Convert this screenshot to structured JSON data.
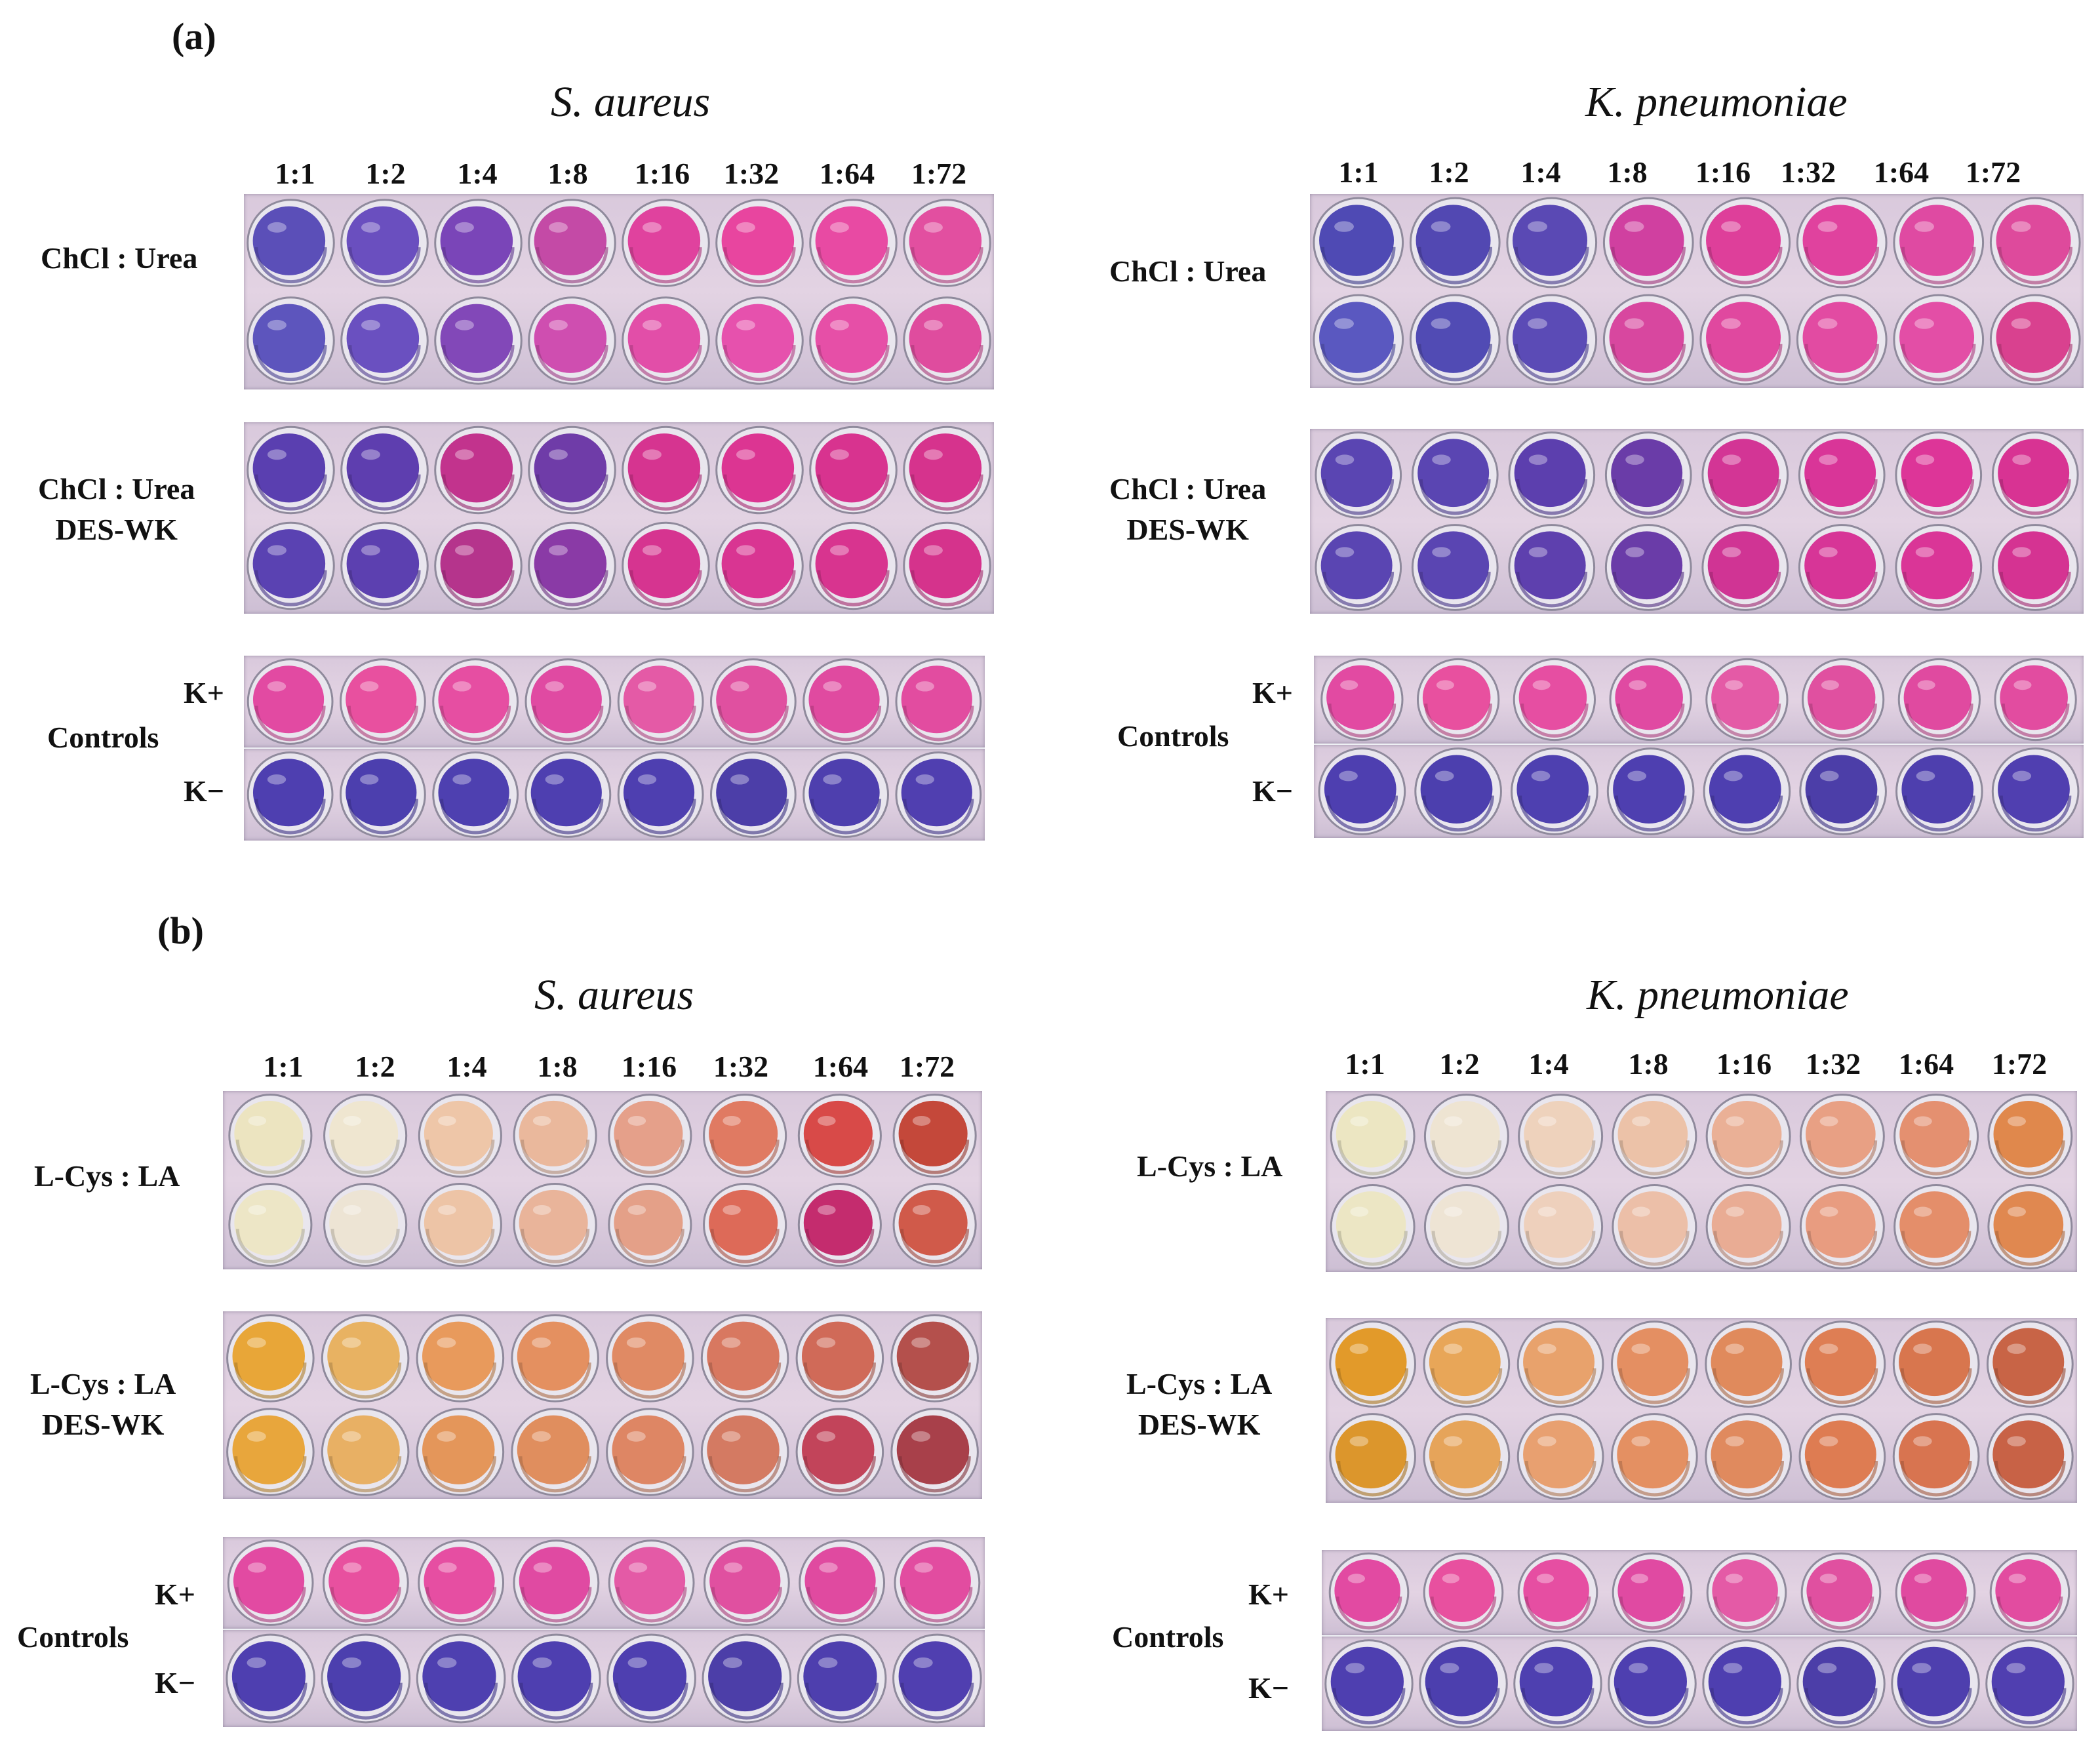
{
  "panels": [
    {
      "label": "(a)",
      "organisms": [
        "S. aureus",
        "K. pneumoniae"
      ],
      "dilutions": [
        "1:1",
        "1:2",
        "1:4",
        "1:8",
        "1:16",
        "1:32",
        "1:64",
        "1:72"
      ],
      "groups": [
        {
          "line1": "ChCl : Urea",
          "line2": ""
        },
        {
          "line1": "ChCl : Urea",
          "line2": "DES-WK"
        },
        {
          "line1": "Controls",
          "k_plus": "K+",
          "k_minus": "K−"
        }
      ]
    },
    {
      "label": "(b)",
      "organisms": [
        "S. aureus",
        "K. pneumoniae"
      ],
      "dilutions": [
        "1:1",
        "1:2",
        "1:4",
        "1:8",
        "1:16",
        "1:32",
        "1:64",
        "1:72"
      ],
      "groups": [
        {
          "line1": "L-Cys : LA",
          "line2": ""
        },
        {
          "line1": "L-Cys : LA",
          "line2": "DES-WK"
        },
        {
          "line1": "Controls",
          "k_plus": "K+",
          "k_minus": "K−"
        }
      ]
    }
  ],
  "well_colors": {
    "a_sa_urea": [
      [
        "#5b4fb8",
        "#6a4fbf",
        "#7a45b8",
        "#c44aa6",
        "#e0429e",
        "#e8459f",
        "#e84aa3",
        "#e24fa0"
      ],
      [
        "#5d55bd",
        "#6a50c0",
        "#8248b8",
        "#cf4eb0",
        "#e24ea8",
        "#e651ad",
        "#e64fa7",
        "#df4c9e"
      ]
    ],
    "a_kp_urea": [
      [
        "#4f4ab4",
        "#5248b2",
        "#5a49b4",
        "#d040a0",
        "#de3f9a",
        "#e0429e",
        "#df4aa2",
        "#de4a9c"
      ],
      [
        "#5a58c0",
        "#514bb4",
        "#5b4bb6",
        "#d8479f",
        "#e0489f",
        "#e24ba2",
        "#e34ea6",
        "#d9418f"
      ]
    ],
    "a_sa_deswk": [
      [
        "#5a3fb0",
        "#5e3eaf",
        "#c2338d",
        "#6f3ca8",
        "#d63490",
        "#dc3592",
        "#d8338f",
        "#d6338d"
      ],
      [
        "#5a42b2",
        "#5c40b0",
        "#b5348c",
        "#8a3aa6",
        "#d63490",
        "#d93592",
        "#d8348f",
        "#d5338c"
      ]
    ],
    "a_kp_deswk": [
      [
        "#5a45b2",
        "#5a45b2",
        "#5c3fae",
        "#6a3ca8",
        "#d33595",
        "#d93598",
        "#dd3598",
        "#d83393"
      ],
      [
        "#5a45b2",
        "#5a45b2",
        "#5e40ae",
        "#6a3ca8",
        "#d03494",
        "#d73597",
        "#da3597",
        "#d53392"
      ]
    ],
    "pos": [
      "#e24aa2",
      "#e8509f",
      "#e64ea2",
      "#e04aa2",
      "#e45aa6",
      "#e050a0",
      "#e04aa0",
      "#e24ca0"
    ],
    "neg": [
      "#4e3fb0",
      "#4c3fae",
      "#4e40b0",
      "#4e3fb0",
      "#4e3fb0",
      "#4c3ea8",
      "#4e3fae",
      "#503fb0"
    ],
    "b_sa_lcys": [
      [
        "#ece4c0",
        "#efe6d0",
        "#eec6a8",
        "#eab89c",
        "#e5a08a",
        "#e07a62",
        "#d84a48",
        "#c4483a"
      ],
      [
        "#ede6c6",
        "#ede4d4",
        "#edc4a6",
        "#e9b49a",
        "#e4a088",
        "#dd6a58",
        "#c42c6e",
        "#d05a4a"
      ]
    ],
    "b_kp_lcys": [
      [
        "#ece6c2",
        "#eee4d2",
        "#eed2bc",
        "#ecc2a8",
        "#eab096",
        "#e8a084",
        "#e49070",
        "#e0884c"
      ],
      [
        "#ece6c4",
        "#eee4d4",
        "#eed0bc",
        "#ecbfa8",
        "#e9ac94",
        "#e89c80",
        "#e48e6a",
        "#e08850"
      ]
    ],
    "b_sa_deswk": [
      [
        "#e8a638",
        "#e8b262",
        "#e89a5c",
        "#e49060",
        "#e08a64",
        "#d87860",
        "#d06a58",
        "#b4504c"
      ],
      [
        "#e8a63c",
        "#e8b064",
        "#e4965a",
        "#e08e5e",
        "#de8664",
        "#d47a62",
        "#c2445a",
        "#a8404a"
      ]
    ],
    "b_kp_deswk": [
      [
        "#e29a2a",
        "#e8a658",
        "#e8a26c",
        "#e48f62",
        "#e08a5c",
        "#de7e54",
        "#d8764e",
        "#c86446"
      ],
      [
        "#dc962c",
        "#e6a45a",
        "#e8a070",
        "#e49062",
        "#e08a5e",
        "#de7c52",
        "#d87450",
        "#c86246"
      ]
    ]
  }
}
